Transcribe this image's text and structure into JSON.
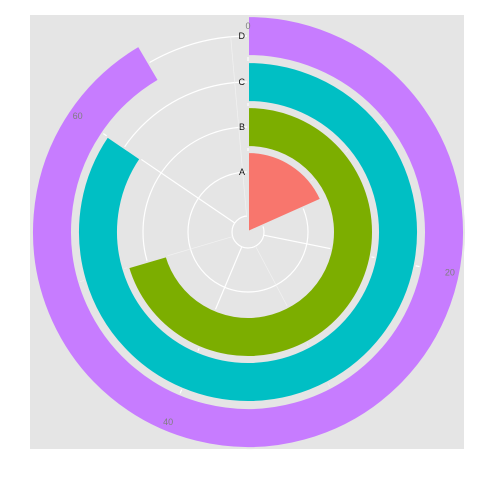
{
  "chart_data": {
    "type": "bar",
    "coord": "polar",
    "x_axis": {
      "ticks": [
        "0",
        "20",
        "40",
        "60"
      ],
      "max": 71
    },
    "categories": [
      "A",
      "B",
      "C",
      "D"
    ],
    "values": [
      13,
      50,
      60,
      65
    ],
    "colors": [
      "#F8766D",
      "#7CAE00",
      "#00BFC4",
      "#C77CFF"
    ],
    "grid": true,
    "panel_background": "#E5E5E5",
    "grid_color": "#FFFFFF",
    "legend": "none"
  }
}
